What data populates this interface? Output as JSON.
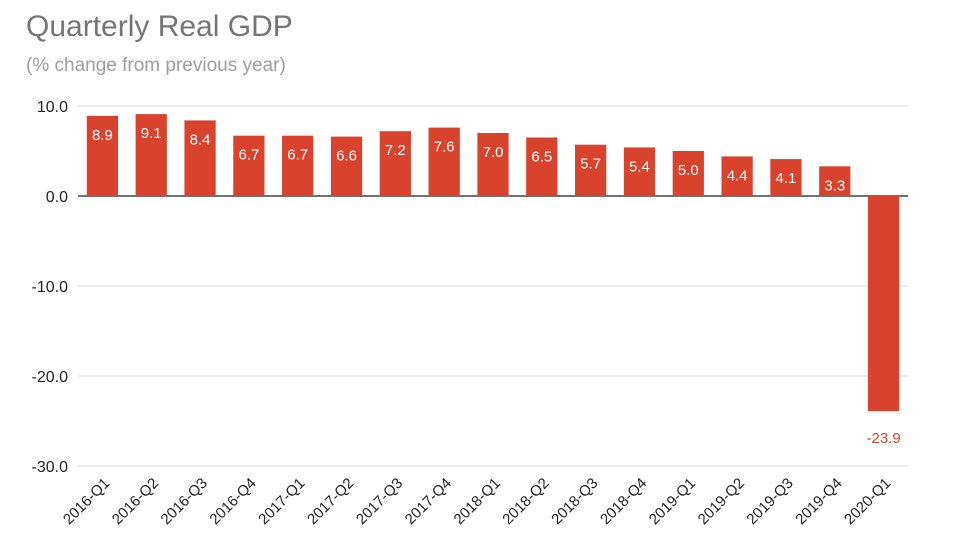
{
  "chart_data": {
    "type": "bar",
    "title": "Quarterly Real GDP",
    "subtitle": "(% change from previous year)",
    "xlabel": "",
    "ylabel": "",
    "ylim": [
      -30,
      10
    ],
    "yticks": [
      "10.0",
      "0.0",
      "-10.0",
      "-20.0",
      "-30.0"
    ],
    "ytick_values": [
      10,
      0,
      -10,
      -20,
      -30
    ],
    "grid": true,
    "legend": "none",
    "bar_color": "#d9422c",
    "categories": [
      "2016-Q1",
      "2016-Q2",
      "2016-Q3",
      "2016-Q4",
      "2017-Q1",
      "2017-Q2",
      "2017-Q3",
      "2017-Q4",
      "2018-Q1",
      "2018-Q2",
      "2018-Q3",
      "2018-Q4",
      "2019-Q1",
      "2019-Q2",
      "2019-Q3",
      "2019-Q4",
      "2020-Q1"
    ],
    "values": [
      8.9,
      9.1,
      8.4,
      6.7,
      6.7,
      6.6,
      7.2,
      7.6,
      7.0,
      6.5,
      5.7,
      5.4,
      5.0,
      4.4,
      4.1,
      3.3,
      -23.9
    ],
    "data_labels": [
      "8.9",
      "9.1",
      "8.4",
      "6.7",
      "6.7",
      "6.6",
      "7.2",
      "7.6",
      "7.0",
      "6.5",
      "5.7",
      "5.4",
      "5.0",
      "4.4",
      "4.1",
      "3.3",
      "-23.9"
    ]
  }
}
